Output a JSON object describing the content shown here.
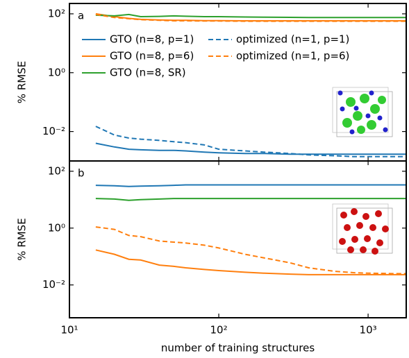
{
  "chart_data": [
    {
      "type": "line",
      "panel_label": "a",
      "ylabel": "% RMSE",
      "log_x": true,
      "log_y": true,
      "legend": "upper left",
      "xlim": [
        10,
        1800
      ],
      "ylim": [
        0.001,
        225
      ],
      "xticks": [
        {
          "value": 10,
          "label": "10¹"
        },
        {
          "value": 100,
          "label": "10²"
        },
        {
          "value": 1000,
          "label": "10³"
        }
      ],
      "yticks": [
        {
          "value": 0.01,
          "label": "10⁻²"
        },
        {
          "value": 1,
          "label": "10⁰"
        },
        {
          "value": 100,
          "label": "10²"
        }
      ],
      "x": [
        15,
        20,
        25,
        30,
        40,
        50,
        60,
        80,
        100,
        150,
        200,
        300,
        400,
        600,
        800,
        1000,
        1500,
        1800
      ],
      "series": [
        {
          "name": "GTO (n=8, p=1)",
          "color": "#1f77b4",
          "dash": false,
          "values": [
            0.004,
            0.003,
            0.0025,
            0.0024,
            0.0023,
            0.0023,
            0.0022,
            0.002,
            0.0019,
            0.0018,
            0.0018,
            0.0017,
            0.0017,
            0.0017,
            0.0017,
            0.0017,
            0.0017,
            0.0017
          ]
        },
        {
          "name": "GTO (n=8, p=6)",
          "color": "#ff7f0e",
          "dash": false,
          "values": [
            100,
            80,
            70,
            65,
            62,
            60,
            60,
            59,
            59,
            58,
            58,
            58,
            58,
            58,
            58,
            58,
            58,
            58
          ]
        },
        {
          "name": "GTO (n=8, SR)",
          "color": "#2ca02c",
          "dash": false,
          "values": [
            90,
            85,
            95,
            80,
            82,
            85,
            83,
            80,
            80,
            78,
            77,
            76,
            75,
            75,
            75,
            75,
            75,
            75
          ]
        },
        {
          "name": "optimized (n=1, p=1)",
          "color": "#1f77b4",
          "dash": true,
          "values": [
            0.015,
            0.0076,
            0.006,
            0.0055,
            0.005,
            0.0045,
            0.0042,
            0.0035,
            0.0025,
            0.0022,
            0.002,
            0.0018,
            0.0016,
            0.0015,
            0.0014,
            0.0014,
            0.0014,
            0.0014
          ]
        },
        {
          "name": "optimized (n=1, p=6)",
          "color": "#ff7f0e",
          "dash": true,
          "values": [
            95,
            75,
            68,
            63,
            60,
            58,
            58,
            57,
            57,
            56,
            56,
            56,
            56,
            56,
            56,
            56,
            56,
            56
          ]
        }
      ]
    },
    {
      "type": "line",
      "panel_label": "b",
      "ylabel": "% RMSE",
      "xlabel": "number of training structures",
      "log_x": true,
      "log_y": true,
      "xlim": [
        10,
        1800
      ],
      "ylim": [
        0.0007,
        230
      ],
      "xticks": [
        {
          "value": 10,
          "label": "10¹"
        },
        {
          "value": 100,
          "label": "10²"
        },
        {
          "value": 1000,
          "label": "10³"
        }
      ],
      "yticks": [
        {
          "value": 0.01,
          "label": "10⁻²"
        },
        {
          "value": 1,
          "label": "10⁰"
        },
        {
          "value": 100,
          "label": "10²"
        }
      ],
      "x": [
        15,
        20,
        25,
        30,
        40,
        50,
        60,
        80,
        100,
        150,
        200,
        300,
        400,
        600,
        800,
        1000,
        1500,
        1800
      ],
      "series": [
        {
          "color": "#1f77b4",
          "dash": false,
          "values": [
            32,
            31,
            29,
            30,
            31,
            32,
            33,
            33,
            33,
            33,
            33,
            33,
            33,
            33,
            33,
            33,
            33,
            33
          ]
        },
        {
          "color": "#2ca02c",
          "dash": false,
          "values": [
            11,
            10.5,
            9.5,
            10,
            10.5,
            11,
            11,
            11,
            11,
            11,
            11,
            11,
            11,
            11,
            11,
            11,
            11,
            11
          ]
        },
        {
          "color": "#ff7f0e",
          "dash": true,
          "values": [
            1.1,
            0.9,
            0.55,
            0.5,
            0.35,
            0.32,
            0.3,
            0.25,
            0.2,
            0.12,
            0.09,
            0.06,
            0.04,
            0.03,
            0.027,
            0.026,
            0.025,
            0.025
          ]
        },
        {
          "color": "#ff7f0e",
          "dash": false,
          "values": [
            0.17,
            0.12,
            0.08,
            0.075,
            0.05,
            0.045,
            0.04,
            0.035,
            0.032,
            0.028,
            0.026,
            0.024,
            0.023,
            0.023,
            0.023,
            0.023,
            0.023,
            0.023
          ]
        }
      ]
    }
  ]
}
